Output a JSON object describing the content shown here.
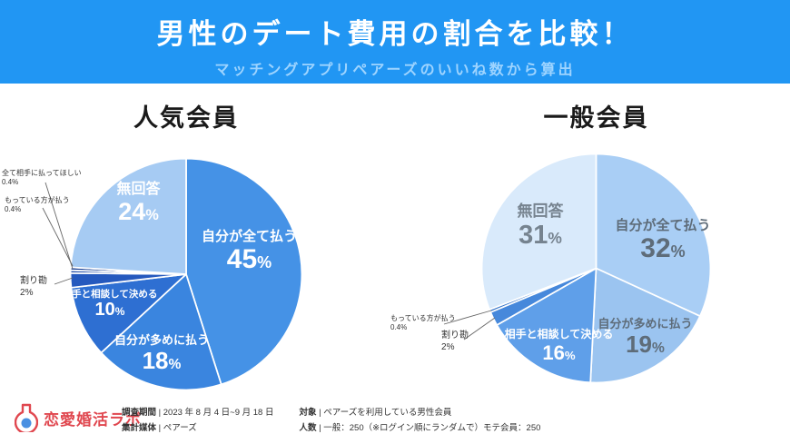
{
  "percent_sign": "%",
  "header": {
    "title": "男性のデート費用の割合を比較！",
    "subtitle": "マッチングアプリペアーズのいいね数から算出",
    "bg_color": "#2196F3",
    "subtitle_color": "#9ED4FF"
  },
  "chart_data": [
    {
      "type": "pie",
      "title": "人気会員",
      "legend_position": "none",
      "slices": [
        {
          "label": "自分が全て払う",
          "value": 45,
          "pct": "45",
          "color": "#4592E6"
        },
        {
          "label": "自分が多めに払う",
          "value": 18,
          "pct": "18",
          "color": "#3A85DF"
        },
        {
          "label": "相手と相談して決める",
          "value": 10,
          "pct": "10",
          "color": "#2E6FD2"
        },
        {
          "label": "割り勘",
          "value": 2,
          "pct": "2",
          "color": "#2559BE"
        },
        {
          "label": "全て相手に払ってほしい",
          "value": 0.4,
          "pct": "0.4",
          "color": "#1D4AA6"
        },
        {
          "label": "もっている方が払う",
          "value": 0.4,
          "pct": "0.4",
          "color": "#163D92"
        },
        {
          "label": "無回答",
          "value": 24,
          "pct": "24",
          "color": "#A6CBF3"
        }
      ]
    },
    {
      "type": "pie",
      "title": "一般会員",
      "legend_position": "none",
      "slices": [
        {
          "label": "自分が全て払う",
          "value": 32,
          "pct": "32",
          "color": "#A9CEF5"
        },
        {
          "label": "自分が多めに払う",
          "value": 19,
          "pct": "19",
          "color": "#9BC4F0"
        },
        {
          "label": "相手と相談して決める",
          "value": 16,
          "pct": "16",
          "color": "#5F9FE9"
        },
        {
          "label": "割り勘",
          "value": 2,
          "pct": "2",
          "color": "#4688DB"
        },
        {
          "label": "もっている方が払う",
          "value": 0.4,
          "pct": "0.4",
          "color": "#3B79CB"
        },
        {
          "label": "無回答",
          "value": 31,
          "pct": "31",
          "color": "#D9EAFB"
        }
      ]
    }
  ],
  "footer": {
    "logo_text": "恋愛婚活ラボ",
    "sep": " | ",
    "items": [
      {
        "label": "調査期間",
        "value": "2023 年 8 月 4 日~9 月 18 日"
      },
      {
        "label": "集計媒体",
        "value": "ペアーズ"
      },
      {
        "label": "対象",
        "value": "ペアーズを利用している男性会員"
      },
      {
        "label": "人数",
        "value": "一般：250（※ログイン順にランダムで）モテ会員：250"
      }
    ]
  }
}
